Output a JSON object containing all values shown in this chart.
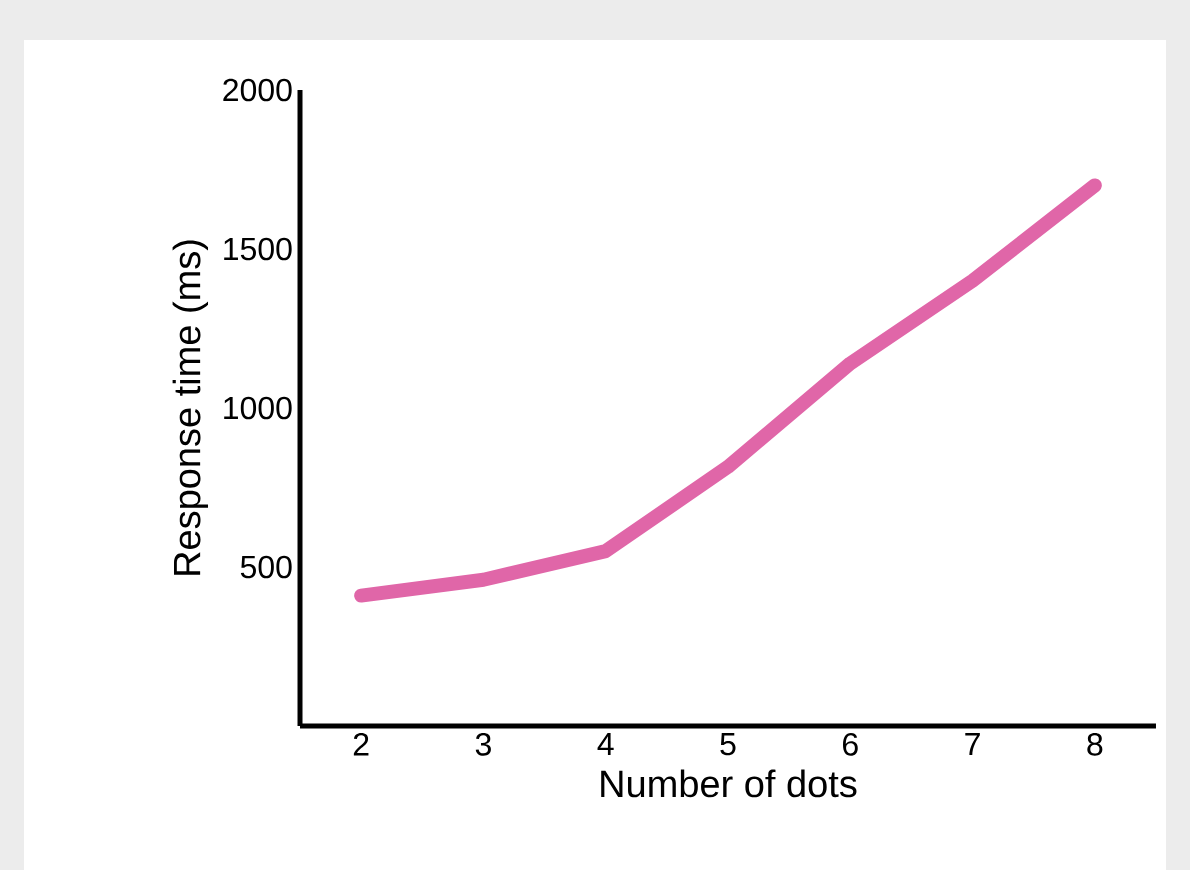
{
  "chart_data": {
    "type": "line",
    "xlabel": "Number of dots",
    "ylabel": "Response time (ms)",
    "x": [
      2,
      3,
      4,
      5,
      6,
      7,
      8
    ],
    "series": [
      {
        "color": "#e066a8",
        "values": [
          410,
          460,
          550,
          815,
          1140,
          1400,
          1700
        ]
      }
    ],
    "xlim": [
      1.5,
      8.5
    ],
    "xticks": [
      2,
      3,
      4,
      5,
      6,
      7,
      8
    ],
    "ylim": [
      0,
      2000
    ],
    "yticks": [
      500,
      1000,
      1500,
      2000
    ],
    "marker": "none",
    "line_style": "solid"
  }
}
